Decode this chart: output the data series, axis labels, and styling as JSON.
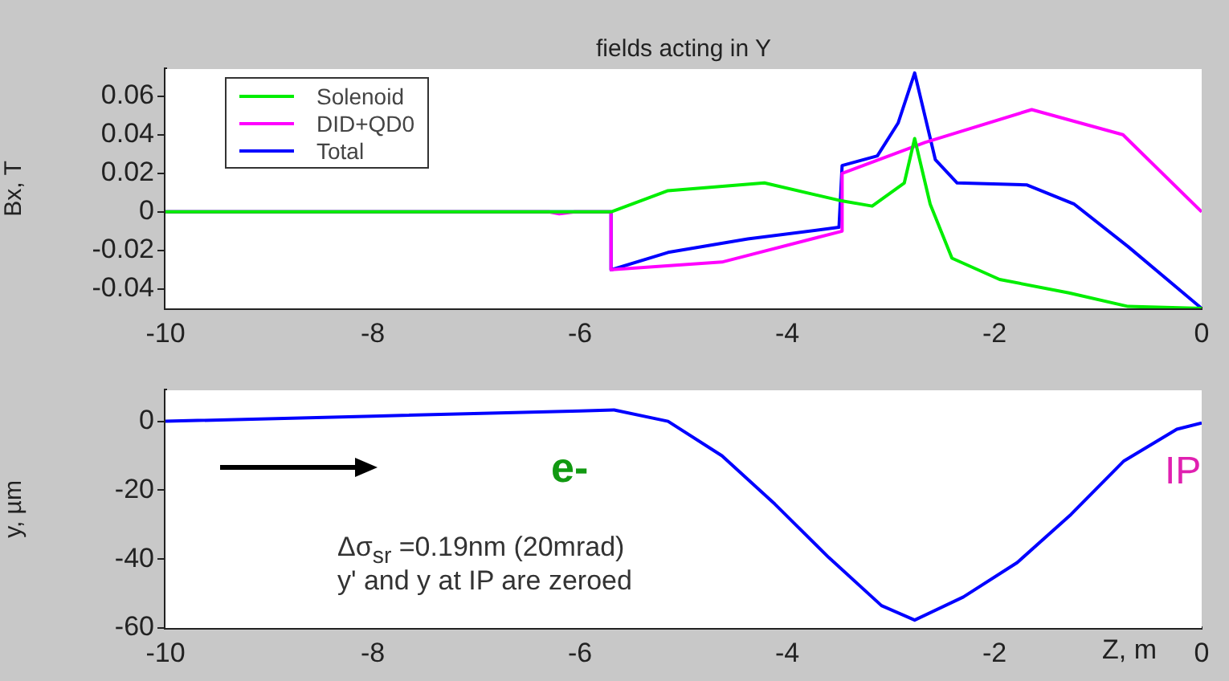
{
  "chart_data": [
    {
      "type": "line",
      "title": "fields acting in Y",
      "ylabel": "Bx, T",
      "xlim": [
        -10,
        0
      ],
      "xticks": [
        -10,
        -8,
        -6,
        -4,
        -2,
        0
      ],
      "ylim": [
        -0.05,
        0.074
      ],
      "yticks": [
        -0.04,
        -0.02,
        0,
        0.02,
        0.04,
        0.06
      ],
      "grid": false,
      "legend": "top left",
      "marker": "none",
      "line_style": "solid",
      "series": [
        {
          "name": "Solenoid",
          "color": "#00ee00",
          "x": [
            -10,
            -5.7,
            -5.15,
            -4.22,
            -3.5,
            -3.18,
            -2.87,
            -2.77,
            -2.62,
            -2.41,
            -1.95,
            -1.28,
            -0.71,
            0
          ],
          "values": [
            0,
            0,
            0.011,
            0.015,
            0.006,
            0.003,
            0.015,
            0.038,
            0.004,
            -0.024,
            -0.035,
            -0.042,
            -0.049,
            -0.05
          ]
        },
        {
          "name": "DID+QD0",
          "color": "#ff00ff",
          "x": [
            -10,
            -6.3,
            -6.2,
            -6.05,
            -5.7,
            -5.7,
            -4.63,
            -3.47,
            -3.47,
            -2.67,
            -1.64,
            -0.76,
            0
          ],
          "values": [
            0,
            0,
            -0.001,
            0,
            0,
            -0.03,
            -0.026,
            -0.01,
            0.02,
            0.036,
            0.053,
            0.04,
            0
          ]
        },
        {
          "name": "Total",
          "color": "#0000ff",
          "x": [
            -10,
            -5.7,
            -5.7,
            -5.15,
            -4.38,
            -3.5,
            -3.47,
            -3.13,
            -2.93,
            -2.77,
            -2.57,
            -2.36,
            -1.69,
            -1.23,
            -0.71,
            0
          ],
          "values": [
            0,
            0,
            -0.03,
            -0.021,
            -0.014,
            -0.008,
            0.024,
            0.029,
            0.046,
            0.072,
            0.027,
            0.015,
            0.014,
            0.004,
            -0.018,
            -0.05
          ]
        }
      ]
    },
    {
      "type": "line",
      "xlabel": "Z, m",
      "ylabel": "y, µm",
      "xlim": [
        -10,
        0
      ],
      "xticks": [
        -10,
        -8,
        -6,
        -4,
        -2,
        0
      ],
      "ylim": [
        -60,
        9
      ],
      "yticks": [
        -60,
        -40,
        -20,
        0
      ],
      "grid": false,
      "marker": "none",
      "line_style": "solid",
      "annotations": [
        "e-",
        "Δσ$_{sr}$ =0.19nm (20mrad)",
        "y' and y at IP are zeroed",
        "IP"
      ],
      "series": [
        {
          "color": "#0000ff",
          "x": [
            -10,
            -8,
            -6,
            -5.67,
            -5.15,
            -4.63,
            -4.12,
            -3.6,
            -3.09,
            -2.77,
            -2.3,
            -1.78,
            -1.26,
            -0.75,
            -0.24,
            0
          ],
          "values": [
            0,
            1.5,
            3,
            3.3,
            0,
            -10,
            -24,
            -39.5,
            -53.5,
            -57.7,
            -51,
            -41,
            -27,
            -11.5,
            -2.3,
            -0.5
          ]
        }
      ]
    }
  ]
}
